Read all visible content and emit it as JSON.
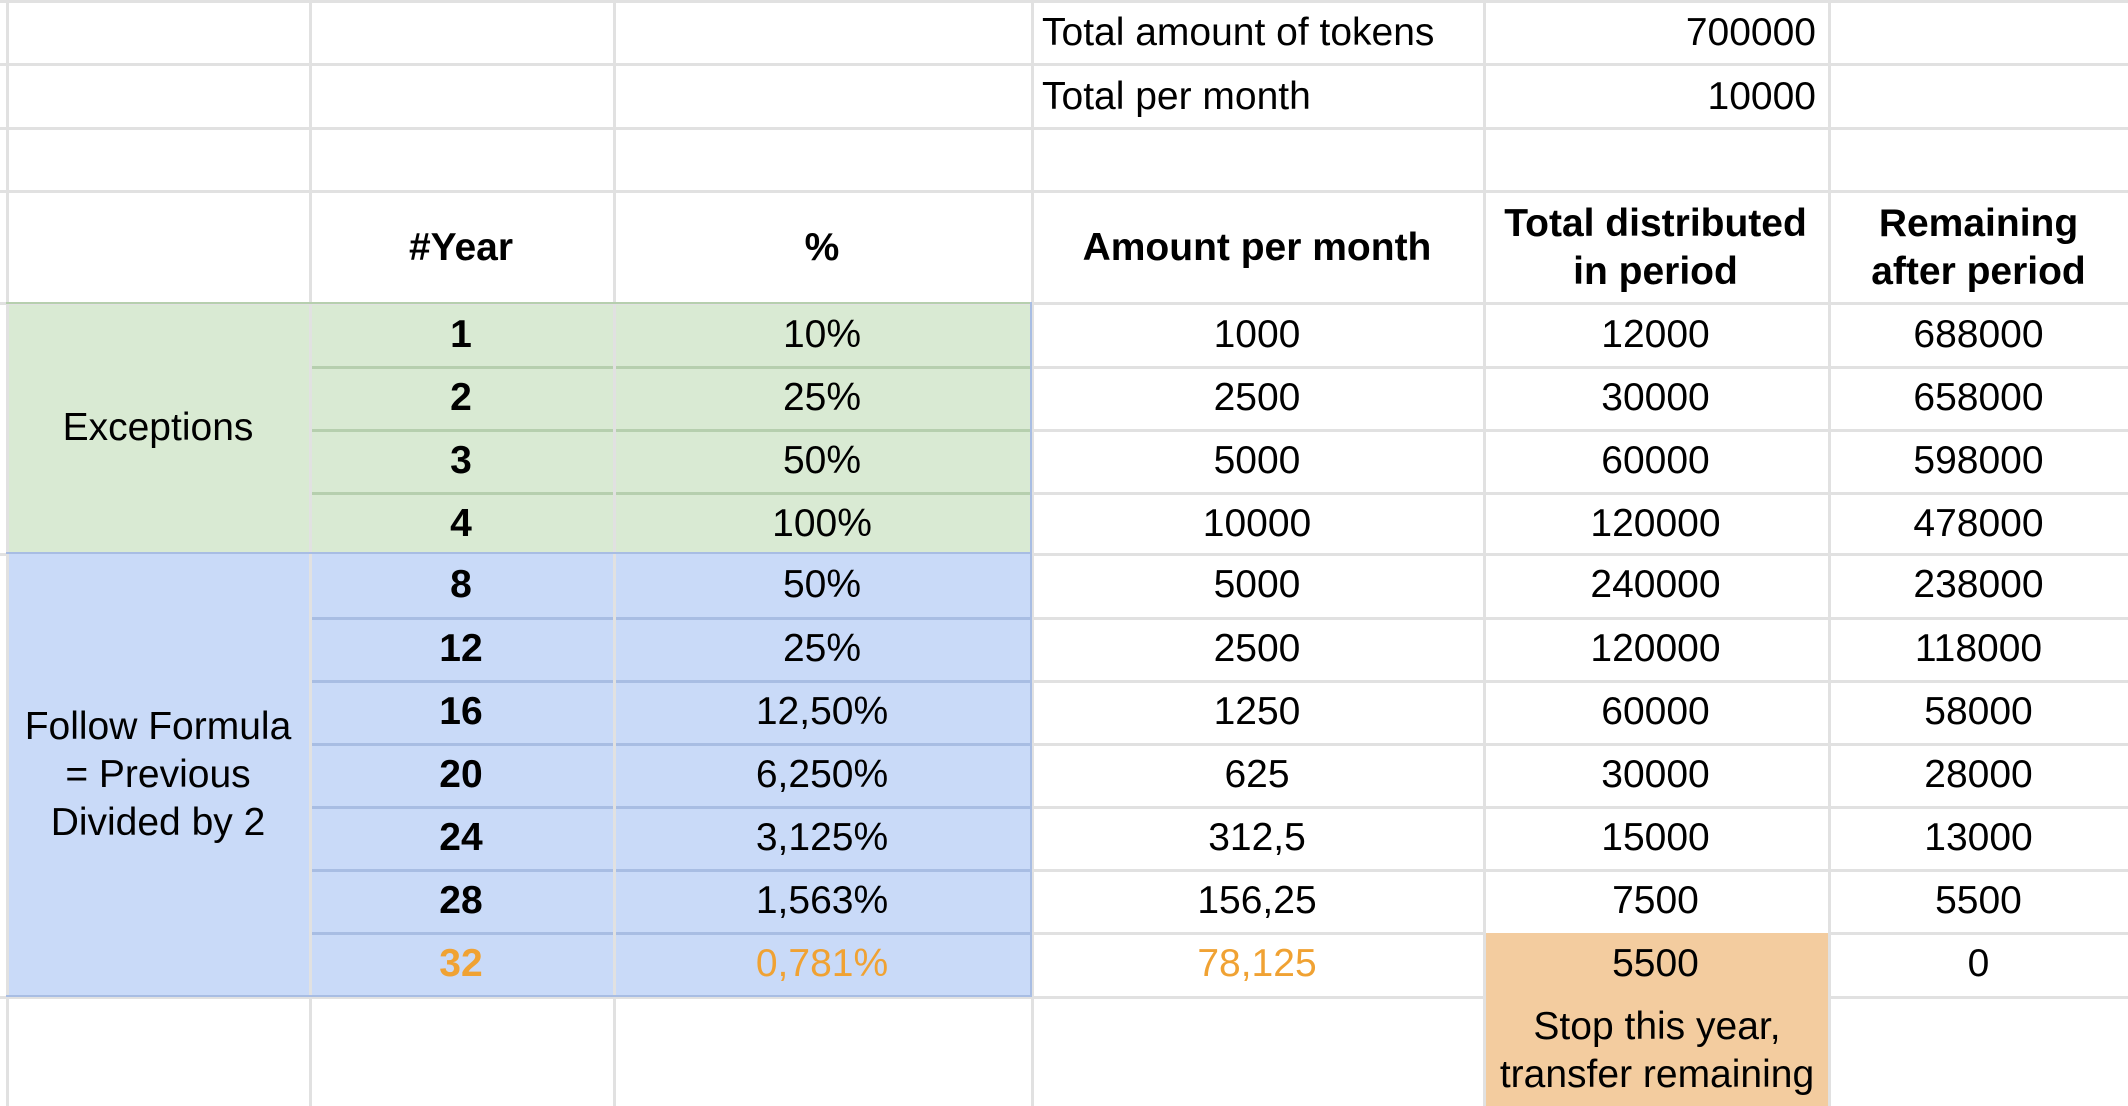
{
  "sheet": {
    "summary": [
      {
        "label": "Total amount of tokens",
        "value": "700000"
      },
      {
        "label": "Total per month",
        "value": "10000"
      }
    ],
    "headers": {
      "year": "#Year",
      "percent": "%",
      "amount_per_month": "Amount per month",
      "total_distributed": "Total distributed in period",
      "remaining": "Remaining after period"
    },
    "groups": {
      "exceptions": "Exceptions",
      "formula": "Follow Formula = Previous Divided by 2"
    },
    "rows": [
      {
        "year": "1",
        "percent": "10%",
        "amount": "1000",
        "total": "12000",
        "remaining": "688000"
      },
      {
        "year": "2",
        "percent": "25%",
        "amount": "2500",
        "total": "30000",
        "remaining": "658000"
      },
      {
        "year": "3",
        "percent": "50%",
        "amount": "5000",
        "total": "60000",
        "remaining": "598000"
      },
      {
        "year": "4",
        "percent": "100%",
        "amount": "10000",
        "total": "120000",
        "remaining": "478000"
      },
      {
        "year": "8",
        "percent": "50%",
        "amount": "5000",
        "total": "240000",
        "remaining": "238000"
      },
      {
        "year": "12",
        "percent": "25%",
        "amount": "2500",
        "total": "120000",
        "remaining": "118000"
      },
      {
        "year": "16",
        "percent": "12,50%",
        "amount": "1250",
        "total": "60000",
        "remaining": "58000"
      },
      {
        "year": "20",
        "percent": "6,250%",
        "amount": "625",
        "total": "30000",
        "remaining": "28000"
      },
      {
        "year": "24",
        "percent": "3,125%",
        "amount": "312,5",
        "total": "15000",
        "remaining": "13000"
      },
      {
        "year": "28",
        "percent": "1,563%",
        "amount": "156,25",
        "total": "7500",
        "remaining": "5500"
      },
      {
        "year": "32",
        "percent": "0,781%",
        "amount": "78,125",
        "total": "5500",
        "remaining": "0"
      }
    ],
    "note": "Stop this year, transfer remaining",
    "colors": {
      "exceptions_fill": "#d9ead3",
      "formula_fill": "#c9daf8",
      "stop_fill": "#f3cc9f",
      "highlight_text": "#f0a233"
    }
  }
}
